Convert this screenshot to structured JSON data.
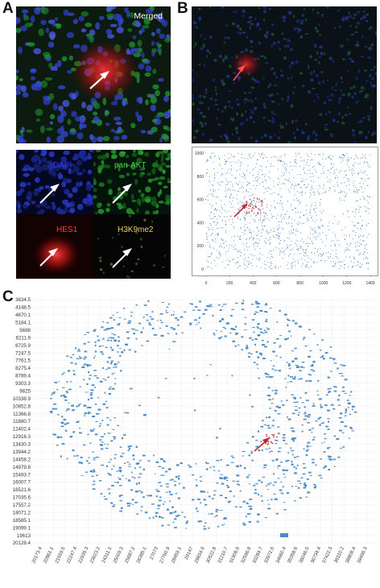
{
  "figure": {
    "panels": {
      "A": {
        "letter": "A",
        "merged_label": "Merged",
        "channel_labels": {
          "dapi": "DAPI",
          "pan_akt": "pan-AKT",
          "hes1": "HES1",
          "h3k9me2": "H3K9me2"
        },
        "colors": {
          "dapi": "#2a3cc8",
          "pan_akt": "#2fa236",
          "hes1": "#e02020",
          "h3k9me2": "#c8b040"
        }
      },
      "B": {
        "letter": "B",
        "chart_data": {
          "type": "scatter",
          "title": "",
          "xlabel": "",
          "ylabel": "",
          "xlim": [
            0,
            1400
          ],
          "ylim": [
            0,
            1000
          ],
          "x_ticks": [
            "0",
            "200",
            "400",
            "600",
            "800",
            "1000",
            "1200",
            "1400"
          ],
          "y_ticks": [
            "0",
            "200",
            "400",
            "600",
            "800",
            "1000"
          ],
          "point_color": "#3d7fc1",
          "highlight_color": "#c0262a",
          "highlight_arrow_at": [
            350,
            560
          ],
          "grid": false
        }
      },
      "C": {
        "letter": "C",
        "chart_data": {
          "type": "scatter",
          "title": "",
          "xlabel": "",
          "ylabel": "",
          "y_ticks": [
            "3634.5",
            "4148.5",
            "4670.1",
            "5184.1",
            "5698",
            "6211.9",
            "6725.9",
            "7247.5",
            "7761.5",
            "8275.4",
            "8789.4",
            "9303.3",
            "9825",
            "10338.9",
            "10852.8",
            "11366.8",
            "11880.7",
            "12402.4",
            "12916.3",
            "13430.3",
            "13944.2",
            "14458.2",
            "14979.8",
            "15493.7",
            "16007.7",
            "16521.6",
            "17035.6",
            "17557.2",
            "18071.2",
            "18585.1",
            "19099.1",
            "19613",
            "20128.4"
          ],
          "x_ticks": [
            "20173.4",
            "20861.1",
            "21559.5",
            "22247.4",
            "22935.3",
            "23623.2",
            "24311.1",
            "25009.3",
            "25687.2",
            "26385.1",
            "27073",
            "27760.9",
            "28459.1",
            "29147",
            "29834.9",
            "30522.8",
            "31210.7",
            "31908.9",
            "32596.8",
            "33284.7",
            "33972.5",
            "34660.4",
            "35358.6",
            "36046.5",
            "36734.4",
            "37422.3",
            "38110.2",
            "38808.4",
            "39496.3"
          ],
          "point_color": "#4a8bc6",
          "highlight_color": "#c0262a",
          "grid": true
        }
      }
    }
  }
}
